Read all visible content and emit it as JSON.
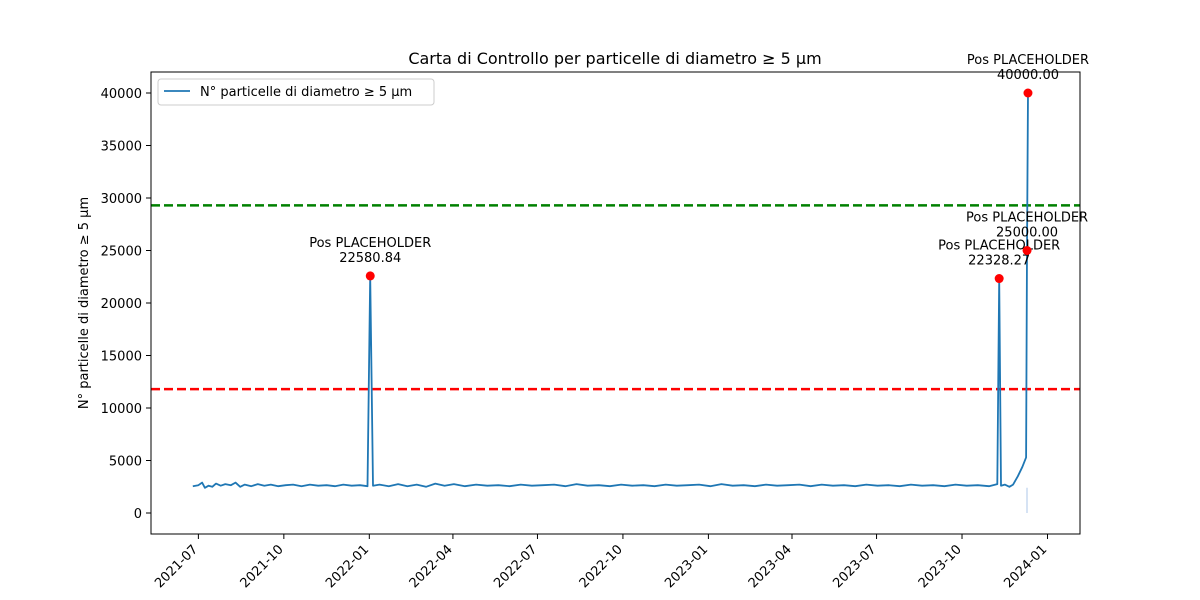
{
  "chart_data": {
    "type": "line",
    "title": "Carta di Controllo per particelle di diametro ≥ 5 µm",
    "xlabel": "",
    "ylabel": "N° particelle di diametro ≥ 5 µm",
    "x_range": [
      "2021-05-11",
      "2024-02-05"
    ],
    "ylim": [
      -2000,
      42000
    ],
    "x_ticks": [
      "2021-07",
      "2021-10",
      "2022-01",
      "2022-04",
      "2022-07",
      "2022-10",
      "2023-01",
      "2023-04",
      "2023-07",
      "2023-10",
      "2024-01"
    ],
    "y_ticks": [
      0,
      5000,
      10000,
      15000,
      20000,
      25000,
      30000,
      35000,
      40000
    ],
    "grid": false,
    "legend_position": "upper-left",
    "series": [
      {
        "name": "N° particelle di diametro ≥ 5 µm",
        "color": "#1f77b4",
        "points": [
          [
            "2021-06-25",
            2550
          ],
          [
            "2021-07-01",
            2650
          ],
          [
            "2021-07-05",
            2900
          ],
          [
            "2021-07-08",
            2400
          ],
          [
            "2021-07-12",
            2600
          ],
          [
            "2021-07-16",
            2500
          ],
          [
            "2021-07-20",
            2800
          ],
          [
            "2021-07-25",
            2600
          ],
          [
            "2021-07-30",
            2750
          ],
          [
            "2021-08-05",
            2650
          ],
          [
            "2021-08-10",
            2900
          ],
          [
            "2021-08-15",
            2500
          ],
          [
            "2021-08-20",
            2700
          ],
          [
            "2021-08-27",
            2550
          ],
          [
            "2021-09-03",
            2750
          ],
          [
            "2021-09-10",
            2600
          ],
          [
            "2021-09-17",
            2700
          ],
          [
            "2021-09-25",
            2550
          ],
          [
            "2021-10-03",
            2650
          ],
          [
            "2021-10-11",
            2700
          ],
          [
            "2021-10-20",
            2550
          ],
          [
            "2021-10-29",
            2700
          ],
          [
            "2021-11-07",
            2600
          ],
          [
            "2021-11-16",
            2650
          ],
          [
            "2021-11-25",
            2550
          ],
          [
            "2021-12-04",
            2700
          ],
          [
            "2021-12-13",
            2600
          ],
          [
            "2021-12-22",
            2650
          ],
          [
            "2021-12-30",
            2550
          ],
          [
            "2022-01-02",
            22580.84
          ],
          [
            "2022-01-05",
            2600
          ],
          [
            "2022-01-12",
            2700
          ],
          [
            "2022-01-22",
            2550
          ],
          [
            "2022-02-01",
            2750
          ],
          [
            "2022-02-11",
            2550
          ],
          [
            "2022-02-21",
            2700
          ],
          [
            "2022-03-03",
            2500
          ],
          [
            "2022-03-13",
            2800
          ],
          [
            "2022-03-23",
            2600
          ],
          [
            "2022-04-02",
            2750
          ],
          [
            "2022-04-14",
            2550
          ],
          [
            "2022-04-26",
            2700
          ],
          [
            "2022-05-08",
            2600
          ],
          [
            "2022-05-20",
            2650
          ],
          [
            "2022-06-01",
            2550
          ],
          [
            "2022-06-13",
            2700
          ],
          [
            "2022-06-25",
            2600
          ],
          [
            "2022-07-07",
            2650
          ],
          [
            "2022-07-19",
            2700
          ],
          [
            "2022-07-31",
            2550
          ],
          [
            "2022-08-12",
            2750
          ],
          [
            "2022-08-24",
            2600
          ],
          [
            "2022-09-05",
            2650
          ],
          [
            "2022-09-17",
            2550
          ],
          [
            "2022-09-29",
            2700
          ],
          [
            "2022-10-11",
            2600
          ],
          [
            "2022-10-23",
            2650
          ],
          [
            "2022-11-04",
            2550
          ],
          [
            "2022-11-16",
            2700
          ],
          [
            "2022-11-28",
            2600
          ],
          [
            "2022-12-10",
            2650
          ],
          [
            "2022-12-22",
            2700
          ],
          [
            "2023-01-03",
            2550
          ],
          [
            "2023-01-15",
            2750
          ],
          [
            "2023-01-27",
            2600
          ],
          [
            "2023-02-08",
            2650
          ],
          [
            "2023-02-20",
            2550
          ],
          [
            "2023-03-04",
            2700
          ],
          [
            "2023-03-16",
            2600
          ],
          [
            "2023-03-28",
            2650
          ],
          [
            "2023-04-09",
            2700
          ],
          [
            "2023-04-21",
            2550
          ],
          [
            "2023-05-03",
            2700
          ],
          [
            "2023-05-15",
            2600
          ],
          [
            "2023-05-27",
            2650
          ],
          [
            "2023-06-08",
            2550
          ],
          [
            "2023-06-20",
            2700
          ],
          [
            "2023-07-02",
            2600
          ],
          [
            "2023-07-14",
            2650
          ],
          [
            "2023-07-26",
            2550
          ],
          [
            "2023-08-07",
            2700
          ],
          [
            "2023-08-19",
            2600
          ],
          [
            "2023-08-31",
            2650
          ],
          [
            "2023-09-12",
            2550
          ],
          [
            "2023-09-24",
            2700
          ],
          [
            "2023-10-06",
            2600
          ],
          [
            "2023-10-18",
            2650
          ],
          [
            "2023-10-30",
            2550
          ],
          [
            "2023-11-08",
            2750
          ],
          [
            "2023-11-10",
            22328.27
          ],
          [
            "2023-11-12",
            2600
          ],
          [
            "2023-11-16",
            2700
          ],
          [
            "2023-11-21",
            2500
          ],
          [
            "2023-11-25",
            2700
          ],
          [
            "2023-11-30",
            3500
          ],
          [
            "2023-12-05",
            4400
          ],
          [
            "2023-12-09",
            5300
          ],
          [
            "2023-12-10",
            25000.0
          ],
          [
            "2023-12-11",
            40000.0
          ]
        ]
      },
      {
        "name": "",
        "color": "#aec7e8",
        "points": [
          [
            "2023-12-10",
            2400
          ],
          [
            "2023-12-10",
            0
          ]
        ]
      }
    ],
    "reference_lines": [
      {
        "y": 29300,
        "color": "#008000",
        "style": "dashed"
      },
      {
        "y": 11800,
        "color": "#ff0000",
        "style": "dashed"
      }
    ],
    "highlighted_points": [
      {
        "x": "2022-01-02",
        "y": 22580.84,
        "label": "Pos PLACEHOLDER",
        "value_label": "22580.84"
      },
      {
        "x": "2023-11-10",
        "y": 22328.27,
        "label": "Pos PLACEHOLDER",
        "value_label": "22328.27"
      },
      {
        "x": "2023-12-10",
        "y": 25000.0,
        "label": "Pos PLACEHOLDER",
        "value_label": "25000.00"
      },
      {
        "x": "2023-12-11",
        "y": 40000.0,
        "label": "Pos PLACEHOLDER",
        "value_label": "40000.00"
      }
    ],
    "highlight_color": "#ff0000"
  }
}
